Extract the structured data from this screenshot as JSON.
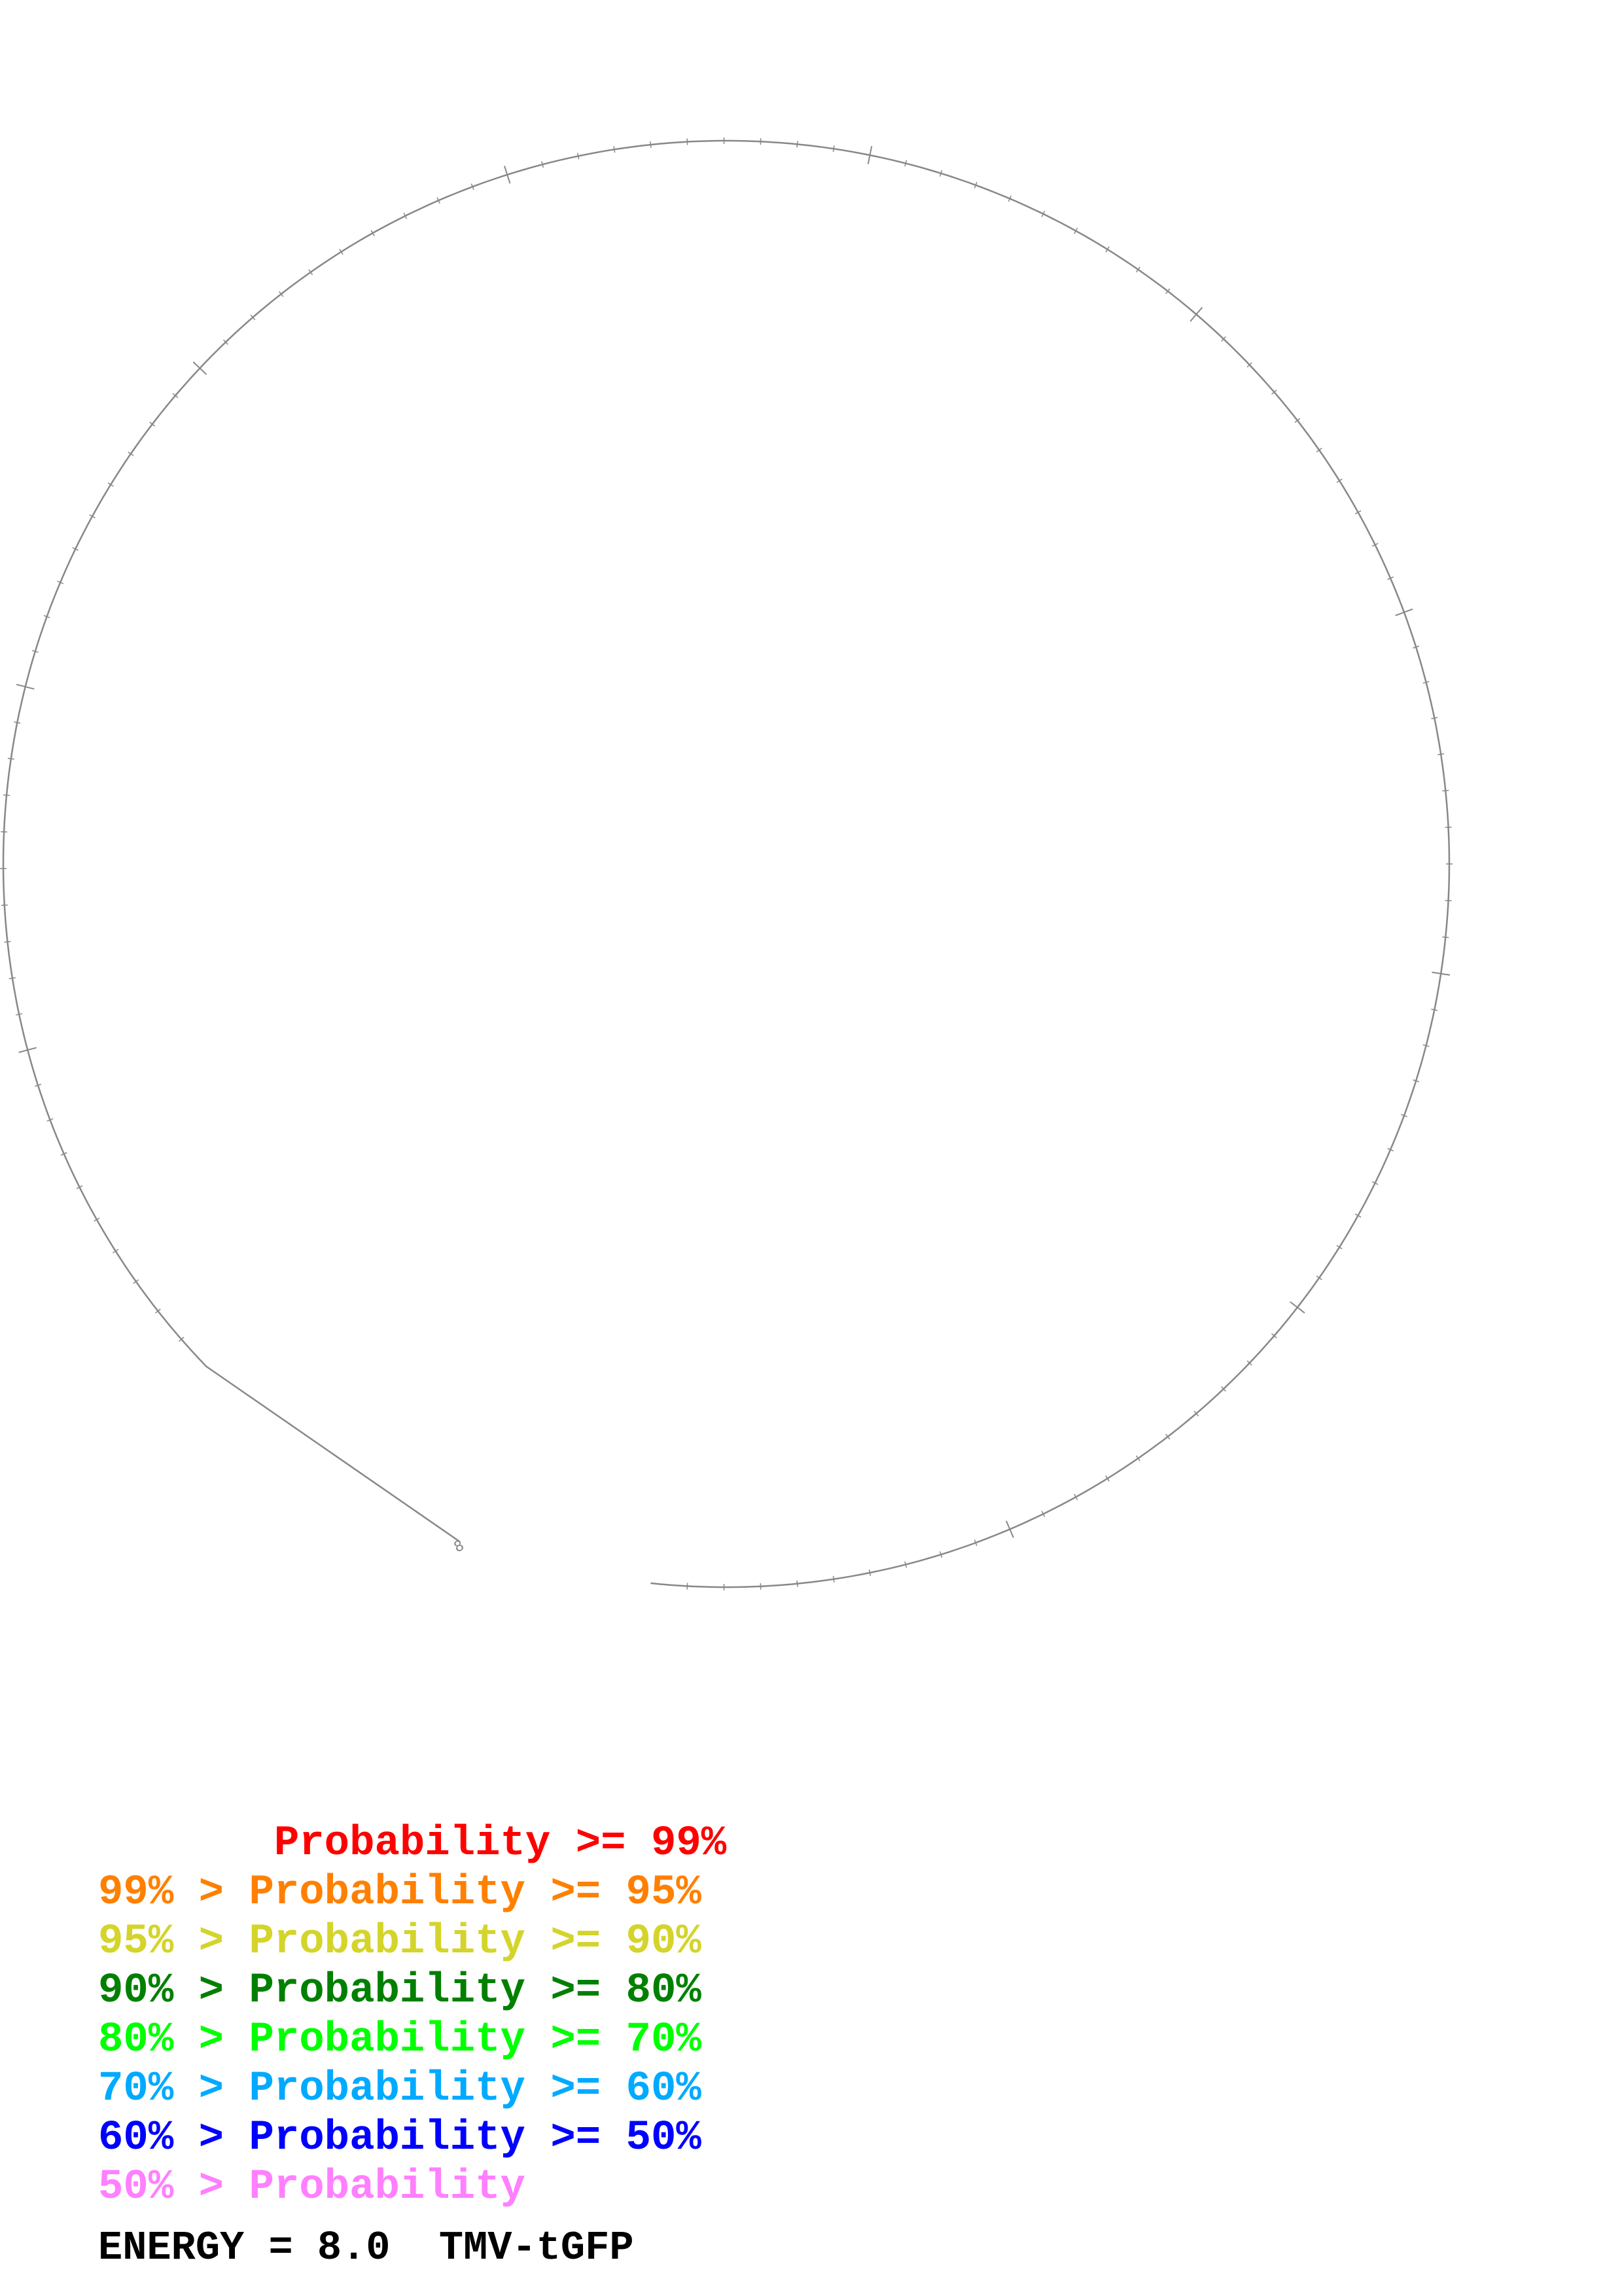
{
  "legend": [
    {
      "text": "       Probability >= 99%",
      "color": "#ff0000"
    },
    {
      "text": "99% > Probability >= 95%",
      "color": "#ff8000"
    },
    {
      "text": "95% > Probability >= 90%",
      "color": "#d4d42a"
    },
    {
      "text": "90% > Probability >= 80%",
      "color": "#008000"
    },
    {
      "text": "80% > Probability >= 70%",
      "color": "#00ff00"
    },
    {
      "text": "70% > Probability >= 60%",
      "color": "#00aaff"
    },
    {
      "text": "60% > Probability >= 50%",
      "color": "#0000ff"
    },
    {
      "text": "50% > Probability",
      "color": "#ff80ff"
    }
  ],
  "footer": {
    "energy_label": "ENERGY = 8.0  TMV-tGFP"
  },
  "diagram": {
    "strand_color": "#888888",
    "start_marker": "8"
  }
}
